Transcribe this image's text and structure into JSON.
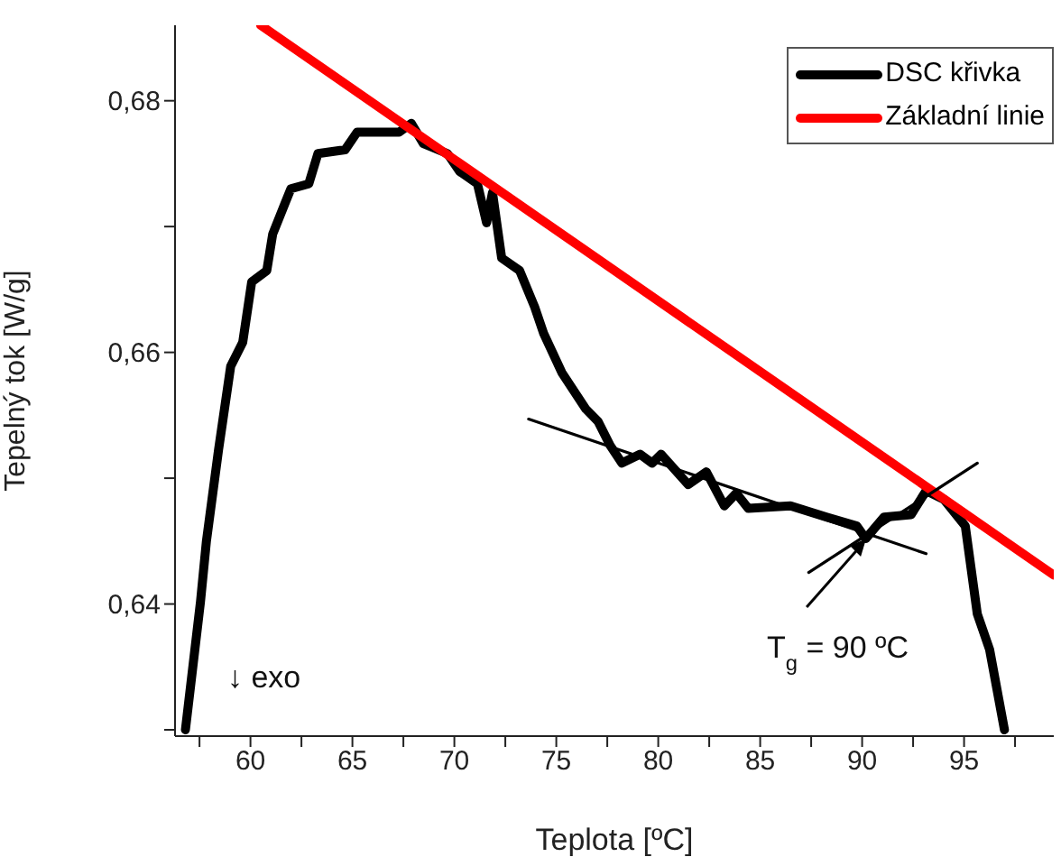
{
  "chart_data": {
    "type": "line",
    "xlabel": "Teplota [ºC]",
    "ylabel": "Tepelný tok [W/g]",
    "xlim": [
      56.3,
      99.4
    ],
    "ylim": [
      0.6295,
      0.686
    ],
    "xticks": [
      {
        "value": 57.5,
        "label": null
      },
      60,
      {
        "value": 62.5,
        "label": null
      },
      65,
      {
        "value": 67.5,
        "label": null
      },
      70,
      {
        "value": 72.5,
        "label": null
      },
      75,
      {
        "value": 77.5,
        "label": null
      },
      80,
      {
        "value": 82.5,
        "label": null
      },
      85,
      {
        "value": 87.5,
        "label": null
      },
      90,
      {
        "value": 92.5,
        "label": null
      },
      95,
      {
        "value": 97.5,
        "label": null
      }
    ],
    "yticks": [
      {
        "value": 0.63,
        "label": null
      },
      {
        "value": 0.64,
        "label": "0,64"
      },
      {
        "value": 0.65,
        "label": null
      },
      {
        "value": 0.66,
        "label": "0,66"
      },
      {
        "value": 0.67,
        "label": null
      },
      {
        "value": 0.68,
        "label": "0,68"
      }
    ],
    "series": [
      {
        "name": "DSC křivka",
        "color": "#000000",
        "x": [
          56.81,
          57.55,
          57.84,
          58.43,
          59.03,
          59.62,
          60.06,
          60.8,
          61.09,
          61.68,
          61.98,
          62.86,
          63.31,
          64.64,
          65.23,
          67.29,
          67.89,
          68.48,
          69.66,
          70.25,
          71.13,
          71.58,
          71.87,
          72.32,
          73.2,
          73.94,
          74.38,
          75.27,
          76.45,
          77.05,
          77.64,
          78.22,
          79.11,
          79.7,
          80.14,
          81.47,
          82.36,
          83.24,
          83.83,
          84.42,
          86.49,
          88.26,
          89.74,
          90.18,
          91.07,
          92.4,
          93.14,
          94.02,
          95.06,
          95.65,
          96.25,
          96.98
        ],
        "values": [
          0.63,
          0.6402,
          0.645,
          0.6522,
          0.6589,
          0.6608,
          0.6656,
          0.6665,
          0.6694,
          0.6718,
          0.673,
          0.6734,
          0.6758,
          0.6761,
          0.6775,
          0.6775,
          0.6782,
          0.6766,
          0.6758,
          0.6744,
          0.6734,
          0.6703,
          0.6727,
          0.6675,
          0.6665,
          0.6636,
          0.6615,
          0.6584,
          0.6555,
          0.6545,
          0.6526,
          0.6512,
          0.6519,
          0.6512,
          0.6519,
          0.6495,
          0.6505,
          0.6478,
          0.6488,
          0.6476,
          0.6478,
          0.6469,
          0.6462,
          0.6452,
          0.6469,
          0.6471,
          0.649,
          0.6483,
          0.6462,
          0.6392,
          0.6364,
          0.63
        ]
      },
      {
        "name": "Základní linie",
        "color": "#ff0000",
        "x": [
          60.5,
          99.4
        ],
        "values": [
          0.686,
          0.6423
        ]
      },
      {
        "color": "#000000",
        "x": [
          73.64,
          93.14
        ],
        "values": [
          0.6547,
          0.644
        ]
      },
      {
        "color": "#000000",
        "x": [
          87.38,
          95.65
        ],
        "values": [
          0.6425,
          0.6512
        ]
      }
    ],
    "annotations": [
      {
        "text": "T$_{g}$ = 90 ºC",
        "x": 90.2,
        "y": 0.6452
      },
      "↓ exo"
    ],
    "legend": "top right",
    "marker": "none",
    "line_style": "solid"
  }
}
